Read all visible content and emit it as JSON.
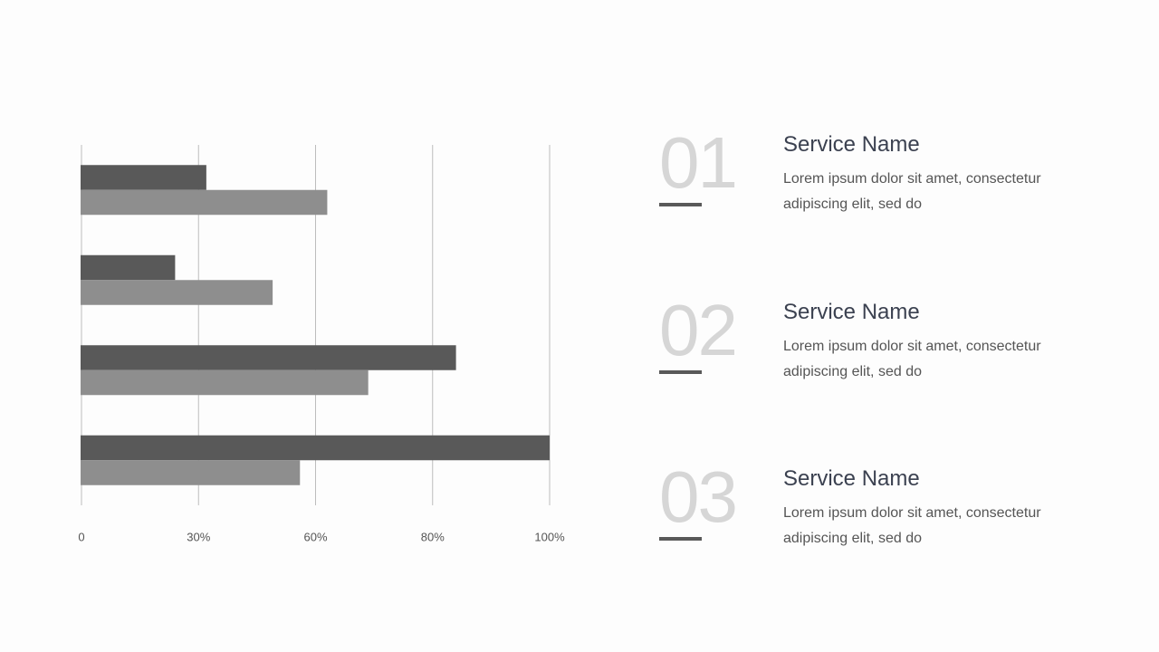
{
  "chart_data": {
    "type": "bar",
    "orientation": "horizontal",
    "categories": [
      null,
      null,
      null,
      null
    ],
    "series": [
      {
        "color": "#595959",
        "values": [
          32,
          24,
          84,
          100
        ]
      },
      {
        "color": "#8e8e8e",
        "values": [
          62,
          49,
          69,
          56
        ]
      }
    ],
    "xlim": [
      0,
      100
    ],
    "xticks": [
      0,
      {
        "value": 30,
        "label": "30%"
      },
      {
        "value": 60,
        "label": "60%"
      },
      {
        "value": 80,
        "label": "80%"
      },
      {
        "value": 100,
        "label": "100%"
      }
    ],
    "grid": true
  },
  "services": [
    {
      "number": "01",
      "title": "Service Name",
      "text": "Lorem ipsum dolor sit amet, consectetur adipiscing elit, sed do"
    },
    {
      "number": "02",
      "title": "Service Name",
      "text": "Lorem ipsum dolor sit amet, consectetur adipiscing elit, sed do"
    },
    {
      "number": "03",
      "title": "Service Name",
      "text": "Lorem ipsum dolor sit amet, consectetur adipiscing elit, sed do"
    }
  ]
}
